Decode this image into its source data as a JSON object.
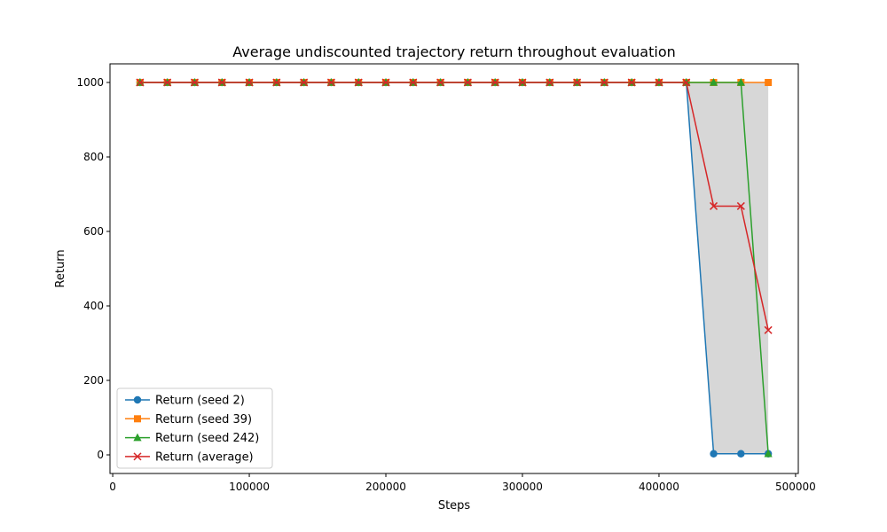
{
  "chart_data": {
    "type": "line",
    "title": "Average undiscounted trajectory return throughout evaluation",
    "xlabel": "Steps",
    "ylabel": "Return",
    "xlim": [
      -2000,
      502000
    ],
    "ylim": [
      -50,
      1050
    ],
    "xticks": [
      0,
      100000,
      200000,
      300000,
      400000,
      500000
    ],
    "xtick_labels": [
      "0",
      "100000",
      "200000",
      "300000",
      "400000",
      "500000"
    ],
    "yticks": [
      0,
      200,
      400,
      600,
      800,
      1000
    ],
    "ytick_labels": [
      "0",
      "200",
      "400",
      "600",
      "800",
      "1000"
    ],
    "grid": false,
    "legend_position": "lower-left",
    "x": [
      20000,
      40000,
      60000,
      80000,
      100000,
      120000,
      140000,
      160000,
      180000,
      200000,
      220000,
      240000,
      260000,
      280000,
      300000,
      320000,
      340000,
      360000,
      380000,
      400000,
      420000,
      440000,
      460000,
      480000
    ],
    "series": [
      {
        "name": "Return (seed 2)",
        "color": "#1f77b4",
        "marker": "circle",
        "values": [
          1000,
          1000,
          1000,
          1000,
          1000,
          1000,
          1000,
          1000,
          1000,
          1000,
          1000,
          1000,
          1000,
          1000,
          1000,
          1000,
          1000,
          1000,
          1000,
          1000,
          1000,
          3,
          3,
          3
        ]
      },
      {
        "name": "Return (seed 39)",
        "color": "#ff7f0e",
        "marker": "square",
        "values": [
          1000,
          1000,
          1000,
          1000,
          1000,
          1000,
          1000,
          1000,
          1000,
          1000,
          1000,
          1000,
          1000,
          1000,
          1000,
          1000,
          1000,
          1000,
          1000,
          1000,
          1000,
          1000,
          1000,
          1000
        ]
      },
      {
        "name": "Return (seed 242)",
        "color": "#2ca02c",
        "marker": "triangle",
        "values": [
          1000,
          1000,
          1000,
          1000,
          1000,
          1000,
          1000,
          1000,
          1000,
          1000,
          1000,
          1000,
          1000,
          1000,
          1000,
          1000,
          1000,
          1000,
          1000,
          1000,
          1000,
          1000,
          1000,
          3
        ]
      },
      {
        "name": "Return (average)",
        "color": "#d62728",
        "marker": "x",
        "values": [
          1000,
          1000,
          1000,
          1000,
          1000,
          1000,
          1000,
          1000,
          1000,
          1000,
          1000,
          1000,
          1000,
          1000,
          1000,
          1000,
          1000,
          1000,
          1000,
          1000,
          1000,
          668,
          668,
          335
        ]
      }
    ],
    "band": {
      "color": "#d3d3d3",
      "lower": [
        1000,
        1000,
        1000,
        1000,
        1000,
        1000,
        1000,
        1000,
        1000,
        1000,
        1000,
        1000,
        1000,
        1000,
        1000,
        1000,
        1000,
        1000,
        1000,
        1000,
        1000,
        3,
        3,
        3
      ],
      "upper": [
        1000,
        1000,
        1000,
        1000,
        1000,
        1000,
        1000,
        1000,
        1000,
        1000,
        1000,
        1000,
        1000,
        1000,
        1000,
        1000,
        1000,
        1000,
        1000,
        1000,
        1000,
        1000,
        1000,
        1000
      ]
    }
  }
}
